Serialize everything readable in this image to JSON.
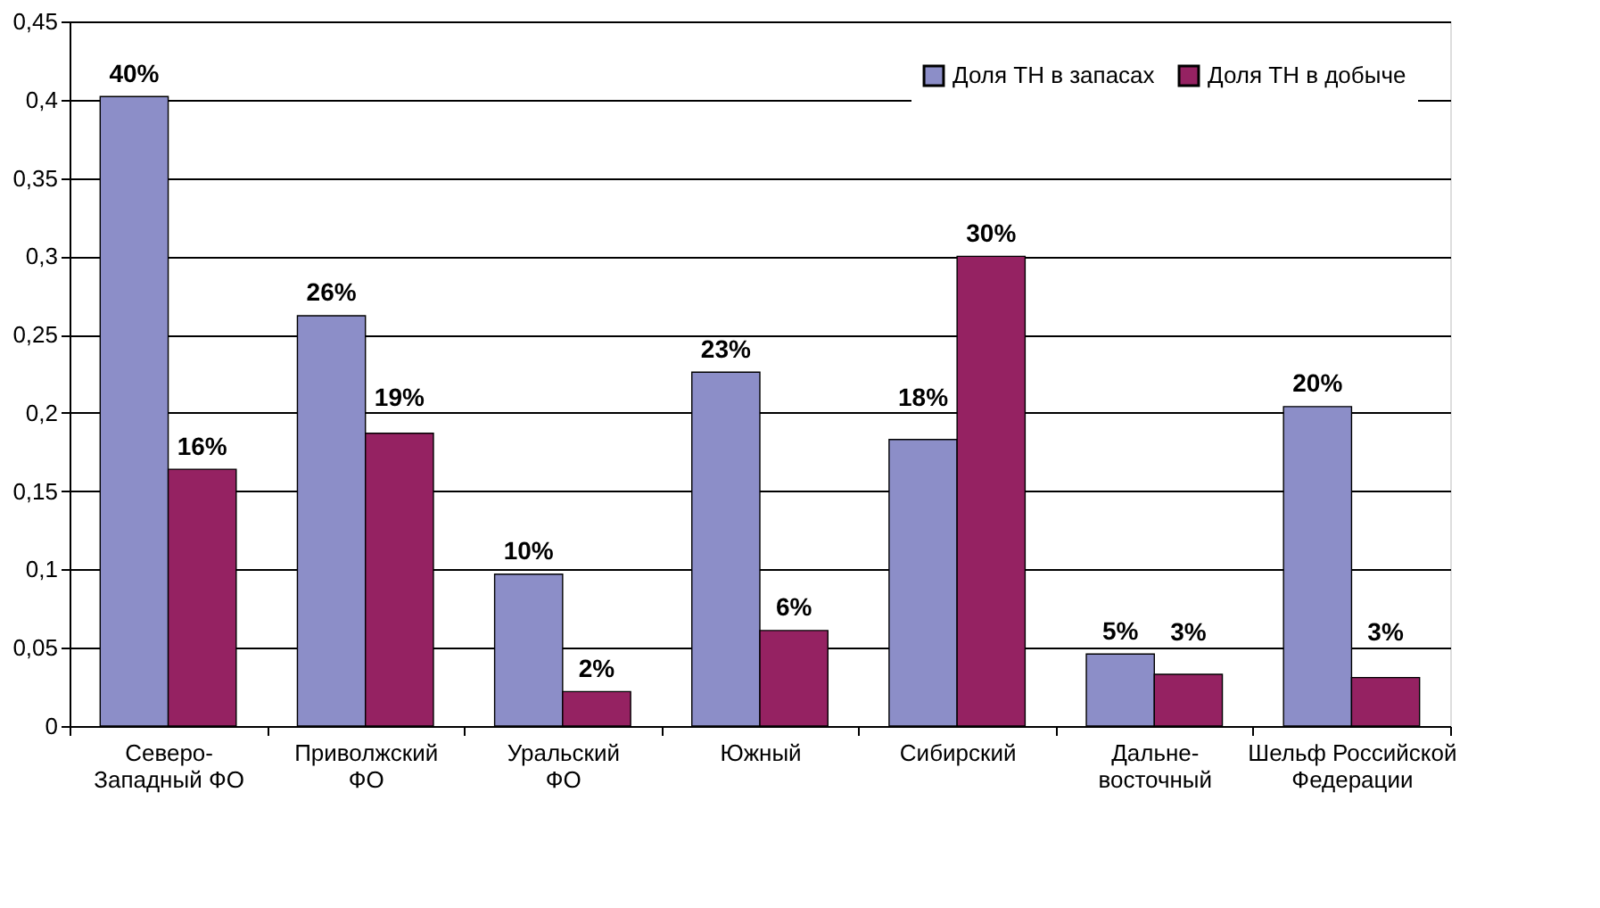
{
  "chart_data": {
    "type": "bar",
    "categories": [
      "Северо-Западный ФО",
      "Приволжский ФО",
      "Уральский ФО",
      "Южный",
      "Сибирский",
      "Дальне-восточный",
      "Шельф Российской Федерации"
    ],
    "series": [
      {
        "name": "Доля ТН в запасах",
        "color": "#8c8ec8",
        "values": [
          0.402,
          0.262,
          0.097,
          0.226,
          0.183,
          0.046,
          0.204
        ],
        "value_labels": [
          "40%",
          "26%",
          "10%",
          "23%",
          "18%",
          "5%",
          "20%"
        ]
      },
      {
        "name": "Доля ТН в добыче",
        "color": "#952262",
        "values": [
          0.164,
          0.187,
          0.022,
          0.061,
          0.3,
          0.033,
          0.031
        ],
        "value_labels": [
          "16%",
          "19%",
          "2%",
          "6%",
          "30%",
          "3%",
          "3%"
        ]
      }
    ],
    "ylim": [
      0,
      0.45
    ],
    "yticks": [
      {
        "value": 0,
        "label": "0"
      },
      {
        "value": 0.05,
        "label": "0,05"
      },
      {
        "value": 0.1,
        "label": "0,1"
      },
      {
        "value": 0.15,
        "label": "0,15"
      },
      {
        "value": 0.2,
        "label": "0,2"
      },
      {
        "value": 0.25,
        "label": "0,25"
      },
      {
        "value": 0.3,
        "label": "0,3"
      },
      {
        "value": 0.35,
        "label": "0,35"
      },
      {
        "value": 0.4,
        "label": "0,4"
      },
      {
        "value": 0.45,
        "label": "0,45"
      }
    ],
    "grid": "y",
    "legend": "top right"
  }
}
